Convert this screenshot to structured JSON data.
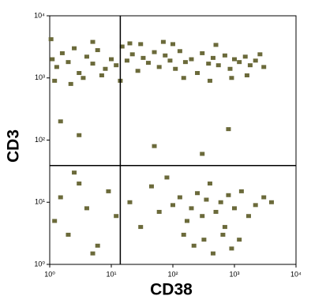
{
  "chart_data": {
    "type": "scatter",
    "x_label": "CD38",
    "y_label": "CD3",
    "log_x": true,
    "log_y": true,
    "color": "#6b6a3a",
    "gate_x": 14,
    "gate_y": 39,
    "xlim": [
      1,
      10000
    ],
    "ylim": [
      1,
      10000
    ],
    "xticks": [
      {
        "value": 1,
        "label": "10⁰"
      },
      {
        "value": 10,
        "label": "10¹"
      },
      {
        "value": 100,
        "label": "10²"
      },
      {
        "value": 1000,
        "label": "10³"
      },
      {
        "value": 10000,
        "label": "10⁴"
      }
    ],
    "yticks": [
      {
        "value": 1,
        "label": "10⁰"
      },
      {
        "value": 10,
        "label": "10¹"
      },
      {
        "value": 100,
        "label": "10²"
      },
      {
        "value": 1000,
        "label": "10³"
      },
      {
        "value": 10000,
        "label": "10⁴"
      }
    ],
    "x": [
      1.1,
      1.3,
      1.6,
      2,
      2.5,
      3,
      4,
      5,
      6,
      8,
      10,
      12,
      15,
      18,
      22,
      27,
      33,
      40,
      50,
      60,
      75,
      90,
      110,
      130,
      160,
      200,
      250,
      300,
      380,
      450,
      550,
      700,
      850,
      1000,
      1200,
      1500,
      1800,
      2200,
      2600,
      3000,
      1.2,
      2.2,
      3.5,
      7,
      14,
      30,
      70,
      150,
      400,
      900,
      1600,
      1.05,
      5,
      20,
      100,
      500,
      1.2,
      1.5,
      2,
      3,
      4,
      6,
      9,
      12,
      2.5,
      5,
      20,
      30,
      45,
      60,
      80,
      100,
      130,
      170,
      200,
      250,
      300,
      350,
      400,
      500,
      600,
      700,
      800,
      1000,
      1300,
      1700,
      2200,
      3000,
      4000,
      150,
      220,
      320,
      450,
      650,
      900,
      1200,
      1.5,
      3,
      50,
      300,
      800
    ],
    "values": [
      2000,
      1500,
      2500,
      1800,
      3000,
      1200,
      2200,
      1700,
      2800,
      1400,
      2000,
      1600,
      3200,
      1900,
      2400,
      1300,
      2100,
      1750,
      2600,
      1500,
      2300,
      1900,
      1400,
      2700,
      1800,
      2000,
      1200,
      2500,
      1700,
      2100,
      1600,
      2300,
      1400,
      2000,
      1800,
      2200,
      1600,
      1900,
      2400,
      1500,
      900,
      800,
      1000,
      1100,
      900,
      3500,
      3800,
      1000,
      900,
      1000,
      1100,
      4200,
      3800,
      3600,
      3500,
      3400,
      5,
      12,
      3,
      20,
      8,
      2,
      15,
      6,
      30,
      1.5,
      10,
      4,
      18,
      7,
      25,
      9,
      12,
      5,
      8,
      14,
      6,
      11,
      20,
      7,
      10,
      4,
      13,
      8,
      15,
      6,
      9,
      12,
      10,
      3,
      2,
      2.5,
      1.5,
      3,
      1.8,
      2.5,
      200,
      120,
      80,
      60,
      150
    ]
  }
}
